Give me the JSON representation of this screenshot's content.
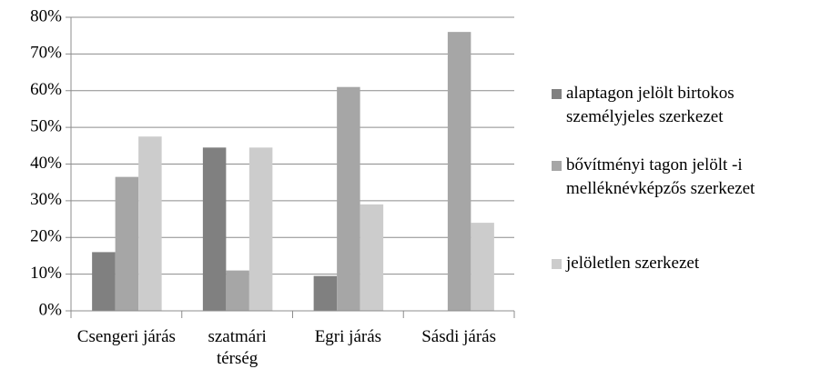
{
  "chart_data": {
    "type": "bar",
    "categories": [
      "Csengeri járás",
      "szatmári térség",
      "Egri járás",
      "Sásdi járás"
    ],
    "series": [
      {
        "name": "alaptagon jelölt birtokos személyjeles szerkezet",
        "color": "#808080",
        "values": [
          16,
          44.5,
          9.5,
          0
        ]
      },
      {
        "name": "bővítményi tagon jelölt -i melléknévképzős szerkezet",
        "color": "#a6a6a6",
        "values": [
          36.5,
          11,
          61,
          76
        ]
      },
      {
        "name": "jelöletlen szerkezet",
        "color": "#cccccc",
        "values": [
          47.5,
          44.5,
          29,
          24
        ]
      }
    ],
    "ylim": [
      0,
      80
    ],
    "yticks": [
      {
        "value": 0,
        "label": "0%"
      },
      {
        "value": 10,
        "label": "10%"
      },
      {
        "value": 20,
        "label": "20%"
      },
      {
        "value": 30,
        "label": "30%"
      },
      {
        "value": 40,
        "label": "40%"
      },
      {
        "value": 50,
        "label": "50%"
      },
      {
        "value": 60,
        "label": "60%"
      },
      {
        "value": 70,
        "label": "70%"
      },
      {
        "value": 80,
        "label": "80%"
      }
    ],
    "grid": true,
    "legend": "right"
  }
}
